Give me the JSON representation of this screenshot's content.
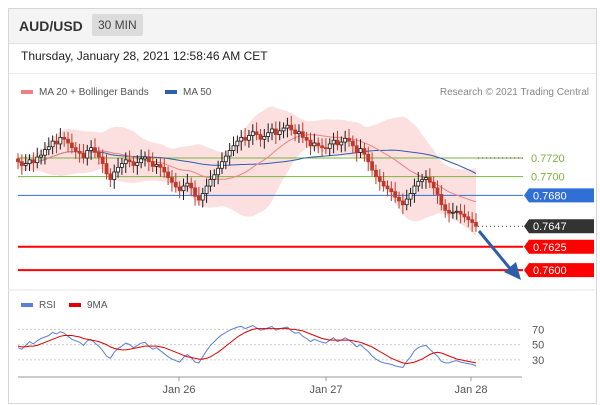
{
  "header": {
    "pair": "AUD/USD",
    "timeframe": "30 MIN"
  },
  "timestamp": "Thursday, January 28, 2021 12:58:46 AM CET",
  "legend": {
    "price": [
      {
        "label": "MA 20 + Bollinger Bands",
        "color": "#f08080"
      },
      {
        "label": "MA 50",
        "color": "#2f5ea8"
      }
    ],
    "rsi": [
      {
        "label": "RSI",
        "color": "#5b7fd6"
      },
      {
        "label": "9MA",
        "color": "#e00000"
      }
    ]
  },
  "credit": "Research © 2021 Trading Central",
  "colors": {
    "up": "#1a1a1a",
    "down": "#c0392b",
    "support": "#ff0000",
    "pivot": "#2f6fd6",
    "resistance": "#7cb342",
    "arrow": "#2f5ea8",
    "current": "#333333"
  },
  "chart_data": {
    "type": "candlestick",
    "x_ticks": [
      "Jan 26",
      "Jan 27",
      "Jan 28"
    ],
    "ylim": [
      0.7582,
      0.7782
    ],
    "levels": [
      {
        "label": "0.7720",
        "value": 0.772,
        "kind": "resistance"
      },
      {
        "label": "0.7700",
        "value": 0.77,
        "kind": "resistance"
      },
      {
        "label": "0.7680",
        "value": 0.768,
        "kind": "pivot"
      },
      {
        "label": "0.7647",
        "value": 0.7647,
        "kind": "current"
      },
      {
        "label": "0.7625",
        "value": 0.7625,
        "kind": "support"
      },
      {
        "label": "0.7600",
        "value": 0.76,
        "kind": "support"
      }
    ],
    "close_series": [
      0.7716,
      0.7712,
      0.7714,
      0.7718,
      0.7715,
      0.7721,
      0.7723,
      0.7729,
      0.7732,
      0.7738,
      0.7735,
      0.7742,
      0.774,
      0.7736,
      0.7731,
      0.7727,
      0.7725,
      0.772,
      0.7728,
      0.7731,
      0.7726,
      0.7721,
      0.7714,
      0.7703,
      0.7697,
      0.7705,
      0.771,
      0.7714,
      0.7718,
      0.7716,
      0.7712,
      0.7715,
      0.7719,
      0.7721,
      0.7716,
      0.7711,
      0.7713,
      0.771,
      0.7705,
      0.7699,
      0.7694,
      0.7689,
      0.7685,
      0.769,
      0.7693,
      0.7688,
      0.7679,
      0.7675,
      0.7682,
      0.769,
      0.7697,
      0.7702,
      0.7709,
      0.7716,
      0.7722,
      0.7728,
      0.7733,
      0.7738,
      0.7742,
      0.7739,
      0.7744,
      0.7748,
      0.7745,
      0.774,
      0.7743,
      0.7747,
      0.7751,
      0.7745,
      0.7749,
      0.7752,
      0.7755,
      0.775,
      0.7746,
      0.7748,
      0.7742,
      0.7739,
      0.7733,
      0.7736,
      0.7733,
      0.7731,
      0.773,
      0.7735,
      0.7739,
      0.7734,
      0.7737,
      0.7741,
      0.7738,
      0.7733,
      0.7726,
      0.773,
      0.7724,
      0.7716,
      0.7707,
      0.77,
      0.7695,
      0.769,
      0.7687,
      0.7684,
      0.7678,
      0.7674,
      0.767,
      0.7676,
      0.7682,
      0.769,
      0.7695,
      0.7697,
      0.7699,
      0.7694,
      0.7688,
      0.7681,
      0.767,
      0.7664,
      0.7661,
      0.7662,
      0.7663,
      0.766,
      0.7657,
      0.7654,
      0.7651,
      0.7647
    ],
    "rsi": {
      "ticks": [
        70,
        50,
        30
      ],
      "ylim": [
        14,
        85
      ],
      "rsi_series": [
        46,
        44,
        49,
        54,
        51,
        55,
        58,
        60,
        62,
        66,
        64,
        67,
        65,
        61,
        57,
        55,
        53,
        49,
        55,
        57,
        52,
        48,
        42,
        35,
        32,
        40,
        45,
        48,
        52,
        50,
        46,
        49,
        52,
        53,
        48,
        44,
        46,
        42,
        38,
        34,
        31,
        29,
        27,
        33,
        37,
        33,
        27,
        26,
        34,
        42,
        49,
        54,
        59,
        63,
        66,
        69,
        71,
        73,
        74,
        71,
        73,
        75,
        72,
        69,
        70,
        72,
        74,
        69,
        71,
        72,
        73,
        68,
        65,
        66,
        61,
        58,
        54,
        57,
        55,
        53,
        52,
        56,
        59,
        54,
        56,
        59,
        56,
        52,
        47,
        50,
        45,
        41,
        35,
        31,
        28,
        26,
        25,
        24,
        22,
        21,
        20,
        28,
        34,
        42,
        46,
        48,
        49,
        44,
        39,
        35,
        28,
        26,
        26,
        28,
        29,
        27,
        26,
        25,
        24,
        22
      ],
      "ma9_series": [
        48,
        47,
        47,
        48,
        48,
        49,
        51,
        53,
        55,
        57,
        59,
        61,
        62,
        62,
        62,
        61,
        60,
        58,
        57,
        56,
        55,
        54,
        52,
        50,
        47,
        45,
        44,
        43,
        43,
        44,
        45,
        46,
        47,
        48,
        48,
        48,
        48,
        47,
        46,
        44,
        42,
        40,
        38,
        36,
        34,
        33,
        32,
        31,
        31,
        32,
        34,
        37,
        40,
        44,
        48,
        52,
        56,
        60,
        63,
        66,
        68,
        70,
        71,
        71,
        71,
        71,
        71,
        71,
        71,
        71,
        71,
        70,
        70,
        69,
        68,
        66,
        64,
        62,
        60,
        58,
        57,
        56,
        56,
        56,
        56,
        56,
        56,
        55,
        54,
        53,
        51,
        49,
        47,
        44,
        41,
        38,
        35,
        32,
        30,
        28,
        26,
        25,
        26,
        27,
        29,
        31,
        34,
        37,
        39,
        40,
        39,
        37,
        35,
        33,
        31,
        30,
        29,
        28,
        27,
        26
      ]
    }
  }
}
